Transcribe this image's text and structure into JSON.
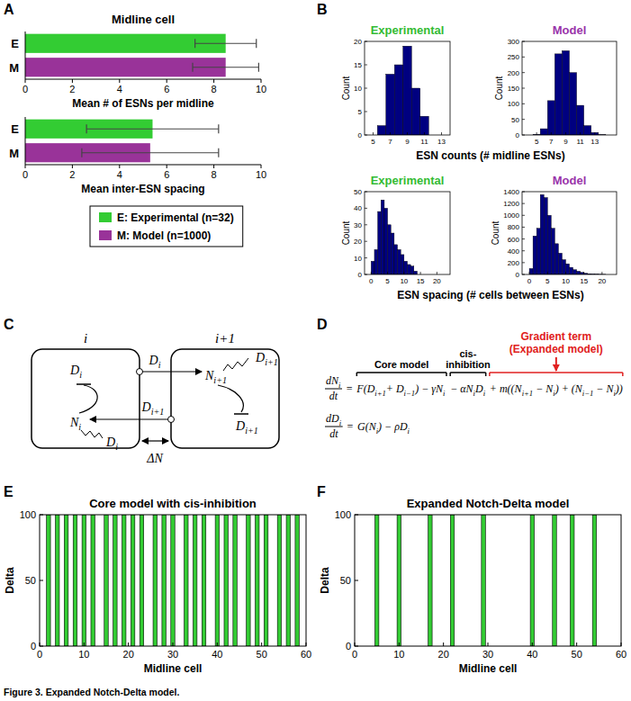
{
  "panel_labels": [
    "A",
    "B",
    "C",
    "D",
    "E",
    "F"
  ],
  "chart_data": [
    {
      "type": "bar",
      "orientation": "horizontal",
      "title": "Midline cell",
      "categories": [
        "E",
        "M"
      ],
      "values": [
        8.5,
        8.5
      ],
      "errors": [
        1.3,
        1.4
      ],
      "colors": [
        "#33cc33",
        "#993399"
      ],
      "x_label": "Mean # of ESNs per midline",
      "xlim": [
        0,
        10
      ],
      "xticks": [
        0,
        2,
        4,
        6,
        8,
        10
      ]
    },
    {
      "type": "bar",
      "orientation": "horizontal",
      "categories": [
        "E",
        "M"
      ],
      "values": [
        5.4,
        5.3
      ],
      "errors": [
        2.8,
        2.9
      ],
      "colors": [
        "#33cc33",
        "#993399"
      ],
      "x_label": "Mean inter-ESN spacing",
      "xlim": [
        0,
        10
      ],
      "xticks": [
        0,
        2,
        4,
        6,
        8,
        10
      ]
    },
    {
      "type": "histogram",
      "title": "Experimental",
      "y_label": "Count",
      "x_label": "ESN counts (# midline ESNs)",
      "bins": [
        5.5,
        6.5,
        7.5,
        8.5,
        9.5,
        10.5,
        11.5
      ],
      "values": [
        2,
        13,
        15,
        19,
        10,
        4
      ],
      "color": "#000080",
      "xlim": [
        4,
        14
      ],
      "xticks": [
        5,
        7,
        9,
        11,
        13
      ],
      "ylim": [
        0,
        20
      ],
      "yticks": [
        0,
        5,
        10,
        15,
        20
      ]
    },
    {
      "type": "histogram",
      "title": "Model",
      "y_label": "Count",
      "bins": [
        4.5,
        5.5,
        6.5,
        7.5,
        8.5,
        9.5,
        10.5,
        11.5,
        12.5,
        13.5,
        14.5
      ],
      "values": [
        2,
        20,
        110,
        260,
        270,
        200,
        95,
        30,
        8,
        1
      ],
      "color": "#000080",
      "xlim": [
        3,
        16
      ],
      "xticks": [
        5,
        7,
        9,
        11,
        13
      ],
      "ylim": [
        0,
        300
      ],
      "yticks": [
        0,
        50,
        100,
        150,
        200,
        250,
        300
      ]
    },
    {
      "type": "histogram",
      "title": "Experimental",
      "y_label": "Count",
      "x_label": "ESN spacing (# cells between ESNs)",
      "bins": [
        0,
        1,
        2,
        3,
        4,
        5,
        6,
        7,
        8,
        9,
        10,
        11,
        12,
        13,
        14
      ],
      "values": [
        8,
        15,
        38,
        45,
        40,
        30,
        25,
        18,
        15,
        12,
        8,
        6,
        5,
        2
      ],
      "color": "#000080",
      "xlim": [
        -2,
        24
      ],
      "xticks": [
        0,
        5,
        10,
        15,
        20
      ],
      "ylim": [
        0,
        50
      ],
      "yticks": [
        0,
        10,
        20,
        30,
        40,
        50
      ]
    },
    {
      "type": "histogram",
      "title": "Model",
      "y_label": "Count",
      "bins": [
        0,
        1,
        2,
        3,
        4,
        5,
        6,
        7,
        8,
        9,
        10,
        11,
        12,
        13,
        14,
        15,
        16,
        17,
        18,
        19,
        20,
        21
      ],
      "values": [
        100,
        650,
        780,
        1350,
        1300,
        1000,
        780,
        520,
        360,
        250,
        180,
        120,
        80,
        55,
        35,
        20,
        12,
        8,
        5,
        3,
        2
      ],
      "color": "#000080",
      "xlim": [
        -2,
        24
      ],
      "xticks": [
        0,
        5,
        10,
        15,
        20
      ],
      "ylim": [
        0,
        1400
      ],
      "yticks": [
        0,
        200,
        400,
        600,
        800,
        1000,
        1200,
        1400
      ]
    },
    {
      "type": "bar",
      "title": "Core model with cis-inhibition",
      "x_label": "Midline cell",
      "y_label": "Delta",
      "x": [
        1,
        2,
        3,
        4,
        5,
        6,
        7,
        8,
        9,
        10,
        11,
        12,
        13,
        14,
        15,
        16,
        17,
        18,
        19,
        20,
        21,
        22,
        23,
        24,
        25,
        26,
        27,
        28,
        29,
        30,
        31,
        32,
        33,
        34,
        35,
        36,
        37,
        38,
        39,
        40,
        41,
        42,
        43,
        44,
        45,
        46,
        47,
        48,
        49,
        50,
        51,
        52,
        53,
        54,
        55,
        56,
        57,
        58,
        59,
        60
      ],
      "values": [
        0,
        100,
        0,
        100,
        0,
        100,
        0,
        100,
        0,
        100,
        0,
        100,
        0,
        0,
        100,
        0,
        100,
        0,
        100,
        0,
        100,
        0,
        100,
        0,
        0,
        100,
        0,
        100,
        0,
        100,
        0,
        0,
        100,
        0,
        100,
        0,
        100,
        0,
        0,
        100,
        0,
        100,
        0,
        100,
        0,
        0,
        100,
        0,
        100,
        0,
        100,
        0,
        0,
        100,
        0,
        100,
        0,
        100,
        0,
        0
      ],
      "color": "#33cc33",
      "xlim": [
        0,
        60
      ],
      "xticks": [
        0,
        10,
        20,
        30,
        40,
        50,
        60
      ],
      "ylim": [
        0,
        100
      ],
      "yticks": [
        0,
        50,
        100
      ]
    },
    {
      "type": "bar",
      "title": "Expanded Notch-Delta model",
      "x_label": "Midline cell",
      "y_label": "Delta",
      "x": [
        1,
        2,
        3,
        4,
        5,
        6,
        7,
        8,
        9,
        10,
        11,
        12,
        13,
        14,
        15,
        16,
        17,
        18,
        19,
        20,
        21,
        22,
        23,
        24,
        25,
        26,
        27,
        28,
        29,
        30,
        31,
        32,
        33,
        34,
        35,
        36,
        37,
        38,
        39,
        40,
        41,
        42,
        43,
        44,
        45,
        46,
        47,
        48,
        49,
        50,
        51,
        52,
        53,
        54,
        55,
        56,
        57,
        58,
        59,
        60
      ],
      "values": [
        0,
        0,
        0,
        0,
        100,
        0,
        0,
        0,
        0,
        100,
        0,
        0,
        0,
        0,
        0,
        0,
        100,
        0,
        0,
        0,
        0,
        100,
        0,
        0,
        0,
        0,
        0,
        0,
        100,
        0,
        0,
        0,
        0,
        0,
        0,
        0,
        0,
        0,
        0,
        100,
        0,
        0,
        0,
        0,
        100,
        0,
        0,
        0,
        100,
        0,
        0,
        0,
        0,
        100,
        0,
        0,
        0,
        0,
        0,
        0
      ],
      "color": "#33cc33",
      "xlim": [
        0,
        60
      ],
      "xticks": [
        0,
        10,
        20,
        30,
        40,
        50,
        60
      ],
      "ylim": [
        0,
        100
      ],
      "yticks": [
        0,
        50,
        100
      ]
    }
  ],
  "legend_entries": [
    {
      "label": "E: Experimental (n=32)",
      "color": "#33cc33"
    },
    {
      "label": "M: Model (n=1000)",
      "color": "#993399"
    }
  ],
  "diagram": {
    "cells": [
      "i",
      "i+1"
    ],
    "labels": [
      [
        {
          "t": "D"
        },
        {
          "s": "i"
        }
      ],
      [
        {
          "t": "N"
        },
        {
          "s": "i"
        }
      ],
      [
        {
          "t": "D"
        },
        {
          "s": "i"
        }
      ],
      [
        {
          "t": "N"
        },
        {
          "s": "i+1"
        }
      ],
      [
        {
          "t": "D"
        },
        {
          "s": "i+1"
        }
      ],
      [
        {
          "t": "D"
        },
        {
          "s": "i+1"
        }
      ],
      [
        {
          "t": "D"
        },
        {
          "s": "i+1"
        }
      ],
      [
        {
          "t": "D"
        },
        {
          "s": "i"
        }
      ],
      [
        {
          "t": "ΔN"
        }
      ]
    ]
  },
  "equations": [
    {
      "lhs": [
        {
          "t": "dN"
        },
        {
          "s": "i"
        }
      ],
      "den": "dt",
      "rhs": [
        {
          "tokens": [
            {
              "t": "="
            }
          ]
        },
        {
          "tokens": [
            {
              "t": "F(D"
            },
            {
              "s": "i+1"
            },
            {
              "t": "+ D"
            },
            {
              "s": "i−1"
            },
            {
              "t": ") − γN"
            },
            {
              "s": "i"
            }
          ],
          "header": [
            "Core model"
          ]
        },
        {
          "tokens": [
            {
              "t": "− αN"
            },
            {
              "s": "i"
            },
            {
              "t": "D"
            },
            {
              "s": "i"
            }
          ],
          "header": [
            "cis-",
            "inhibition"
          ]
        },
        {
          "tokens": [
            {
              "t": "+ m((N"
            },
            {
              "s": "i+1"
            },
            {
              "t": " − N"
            },
            {
              "s": "i"
            },
            {
              "t": ") + (N"
            },
            {
              "s": "i−1"
            },
            {
              "t": " − N"
            },
            {
              "s": "i"
            },
            {
              "t": "))"
            }
          ],
          "header": [
            "Gradient term",
            "(Expanded model)"
          ]
        }
      ]
    },
    {
      "lhs": [
        {
          "t": "dD"
        },
        {
          "s": "i"
        }
      ],
      "den": "dt",
      "rhs": [
        {
          "tokens": [
            {
              "t": "="
            }
          ]
        },
        {
          "tokens": [
            {
              "t": "G(N"
            },
            {
              "s": "i"
            },
            {
              "t": ") − ρD"
            },
            {
              "s": "i"
            }
          ]
        }
      ]
    }
  ],
  "caption": "Figure 3. Expanded Notch-Delta model."
}
